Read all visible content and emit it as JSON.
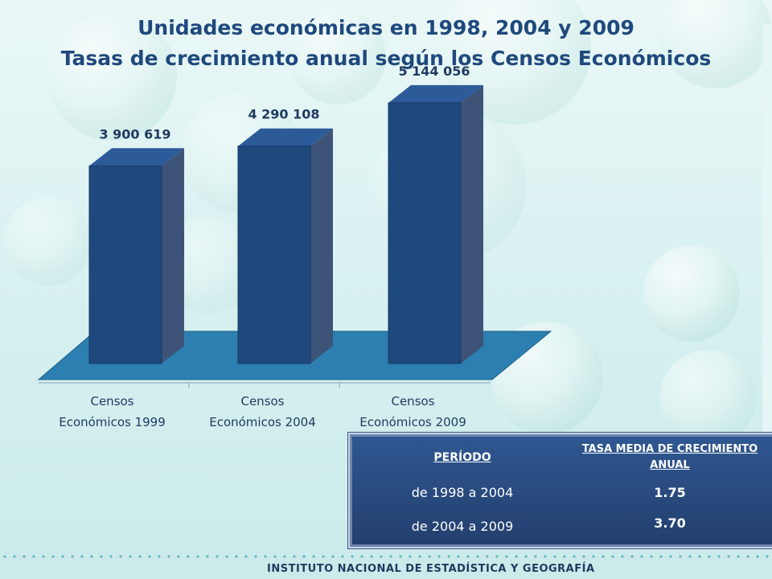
{
  "header": {
    "title_line1": "Unidades económicas en 1998, 2004 y 2009",
    "title_line2": "Tasas de crecimiento anual según los Censos Económicos"
  },
  "chart_data": {
    "type": "bar",
    "categories": [
      "Censos Económicos 1999",
      "Censos Económicos 2004",
      "Censos Económicos 2009"
    ],
    "category_lines": [
      [
        "Censos",
        "Económicos 1999"
      ],
      [
        "Censos",
        "Económicos 2004"
      ],
      [
        "Censos",
        "Económicos 2009"
      ]
    ],
    "values": [
      3900619,
      4290108,
      5144056
    ],
    "value_labels": [
      "3 900 619",
      "4 290 108",
      "5 144 056"
    ],
    "style": "3d",
    "colors": {
      "bar": "#1f497d",
      "floor": "#2c7fb0"
    }
  },
  "table": {
    "header_period": "PERÍODO",
    "header_rate": "TASA MEDIA DE CRECIMIENTO ANUAL",
    "rows": [
      {
        "period": "de 1998 a 2004",
        "rate": "1.75"
      },
      {
        "period": "de 2004 a 2009",
        "rate": "3.70"
      }
    ]
  },
  "footer": {
    "institution": "INSTITUTO NACIONAL DE ESTADÍSTICA Y GEOGRAFÍA"
  }
}
